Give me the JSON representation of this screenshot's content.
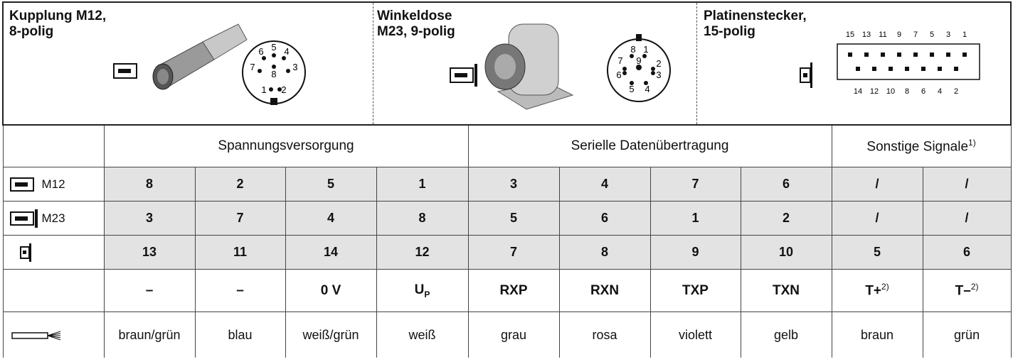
{
  "connectors": [
    {
      "label": [
        "Kupplung M12,",
        "8-polig"
      ],
      "pins": [
        "6",
        "5",
        "4",
        "7",
        "3",
        "8",
        "1",
        "2"
      ]
    },
    {
      "label": [
        "Winkeldose",
        "M23, 9-polig"
      ],
      "pins": [
        "8",
        "1",
        "7",
        "9",
        "2",
        "6",
        "3",
        "5",
        "4"
      ]
    },
    {
      "label": [
        "Platinenstecker,",
        "15-polig"
      ],
      "pins_top": [
        "15",
        "13",
        "11",
        "9",
        "7",
        "5",
        "3",
        "1"
      ],
      "pins_bottom": [
        "14",
        "12",
        "10",
        "8",
        "6",
        "4",
        "2"
      ]
    }
  ],
  "groups": [
    {
      "text": "Spannungsversorgung",
      "span": 4
    },
    {
      "text": "Serielle Datenübertragung",
      "span": 4
    },
    {
      "text": "Sonstige Signale",
      "sup": "1)",
      "span": 2
    }
  ],
  "rows": [
    {
      "icon": "m12",
      "label": "M12",
      "cells": [
        "8",
        "2",
        "5",
        "1",
        "3",
        "4",
        "7",
        "6",
        "/",
        "/"
      ]
    },
    {
      "icon": "m23",
      "label": "M23",
      "cells": [
        "3",
        "7",
        "4",
        "8",
        "5",
        "6",
        "1",
        "2",
        "/",
        "/"
      ]
    },
    {
      "icon": "board",
      "cells": [
        "13",
        "11",
        "14",
        "12",
        "7",
        "8",
        "9",
        "10",
        "5",
        "6"
      ]
    }
  ],
  "signals": [
    {
      "text": "–"
    },
    {
      "text": "–"
    },
    {
      "text": "0 V"
    },
    {
      "text": "U",
      "sub": "P"
    },
    {
      "text": "RXP"
    },
    {
      "text": "RXN"
    },
    {
      "text": "TXP"
    },
    {
      "text": "TXN"
    },
    {
      "text": "T+",
      "sup": "2)"
    },
    {
      "text": "T–",
      "sup": "2)"
    }
  ],
  "wire_colors": [
    "braun/grün",
    "blau",
    "weiß/grün",
    "weiß",
    "grau",
    "rosa",
    "violett",
    "gelb",
    "braun",
    "grün"
  ]
}
